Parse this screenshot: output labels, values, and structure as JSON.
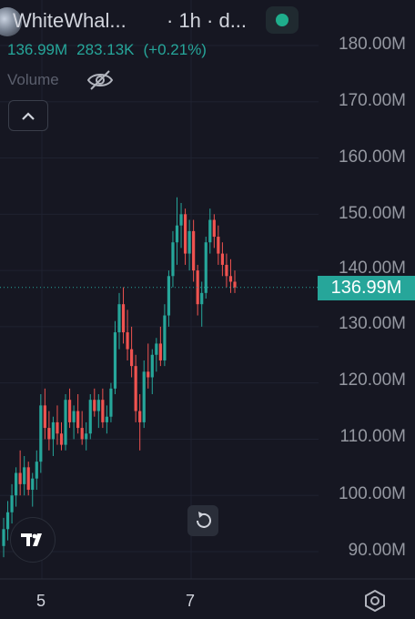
{
  "header": {
    "symbol": "WhiteWhal...",
    "timeframe": "· 1h · d...",
    "price": "136.99M",
    "change_abs": "283.13K",
    "change_pct": "(+0.21%)",
    "volume_label": "Volume"
  },
  "price_axis": {
    "labels": [
      "180.00M",
      "170.00M",
      "160.00M",
      "150.00M",
      "140.00M",
      "130.00M",
      "120.00M",
      "110.00M",
      "100.00M",
      "90.00M"
    ],
    "current_price": "136.99M"
  },
  "time_axis": {
    "labels": [
      "5",
      "7"
    ]
  },
  "colors": {
    "up": "#26a69a",
    "down": "#ef5350",
    "background": "#161722",
    "grid": "#1f2230"
  },
  "icons": {
    "status": "live-dot-icon",
    "volume_toggle": "eye-off-icon",
    "collapse": "chevron-up-icon",
    "reset": "reset-icon",
    "brand": "tradingview-logo-icon",
    "settings": "settings-icon"
  },
  "chart_data": {
    "type": "candlestick",
    "y_range_millions": [
      88,
      182
    ],
    "candles": [
      {
        "o": 91,
        "h": 96,
        "l": 89,
        "c": 94
      },
      {
        "o": 94,
        "h": 99,
        "l": 92,
        "c": 97
      },
      {
        "o": 97,
        "h": 102,
        "l": 95,
        "c": 100
      },
      {
        "o": 100,
        "h": 105,
        "l": 98,
        "c": 104
      },
      {
        "o": 104,
        "h": 108,
        "l": 100,
        "c": 102
      },
      {
        "o": 102,
        "h": 107,
        "l": 100,
        "c": 105
      },
      {
        "o": 105,
        "h": 106,
        "l": 100,
        "c": 101
      },
      {
        "o": 101,
        "h": 104,
        "l": 98,
        "c": 103
      },
      {
        "o": 103,
        "h": 108,
        "l": 101,
        "c": 106
      },
      {
        "o": 106,
        "h": 118,
        "l": 104,
        "c": 116
      },
      {
        "o": 116,
        "h": 119,
        "l": 110,
        "c": 112
      },
      {
        "o": 112,
        "h": 115,
        "l": 108,
        "c": 110
      },
      {
        "o": 110,
        "h": 114,
        "l": 107,
        "c": 113
      },
      {
        "o": 113,
        "h": 116,
        "l": 109,
        "c": 111
      },
      {
        "o": 111,
        "h": 113,
        "l": 108,
        "c": 109
      },
      {
        "o": 109,
        "h": 118,
        "l": 108,
        "c": 117
      },
      {
        "o": 117,
        "h": 119,
        "l": 112,
        "c": 113
      },
      {
        "o": 113,
        "h": 116,
        "l": 110,
        "c": 115
      },
      {
        "o": 115,
        "h": 118,
        "l": 111,
        "c": 112
      },
      {
        "o": 112,
        "h": 115,
        "l": 109,
        "c": 110
      },
      {
        "o": 110,
        "h": 113,
        "l": 108,
        "c": 111
      },
      {
        "o": 111,
        "h": 118,
        "l": 110,
        "c": 117
      },
      {
        "o": 117,
        "h": 119,
        "l": 114,
        "c": 115
      },
      {
        "o": 115,
        "h": 118,
        "l": 112,
        "c": 117
      },
      {
        "o": 117,
        "h": 119,
        "l": 112,
        "c": 113
      },
      {
        "o": 113,
        "h": 116,
        "l": 111,
        "c": 114
      },
      {
        "o": 114,
        "h": 120,
        "l": 113,
        "c": 119
      },
      {
        "o": 119,
        "h": 131,
        "l": 118,
        "c": 129
      },
      {
        "o": 129,
        "h": 136,
        "l": 126,
        "c": 134
      },
      {
        "o": 134,
        "h": 137,
        "l": 127,
        "c": 129
      },
      {
        "o": 129,
        "h": 133,
        "l": 124,
        "c": 126
      },
      {
        "o": 126,
        "h": 130,
        "l": 121,
        "c": 123
      },
      {
        "o": 123,
        "h": 125,
        "l": 113,
        "c": 115
      },
      {
        "o": 115,
        "h": 118,
        "l": 108,
        "c": 113
      },
      {
        "o": 113,
        "h": 124,
        "l": 112,
        "c": 122
      },
      {
        "o": 122,
        "h": 127,
        "l": 119,
        "c": 121
      },
      {
        "o": 121,
        "h": 126,
        "l": 118,
        "c": 125
      },
      {
        "o": 125,
        "h": 128,
        "l": 122,
        "c": 127
      },
      {
        "o": 127,
        "h": 130,
        "l": 123,
        "c": 124
      },
      {
        "o": 124,
        "h": 134,
        "l": 123,
        "c": 132
      },
      {
        "o": 132,
        "h": 140,
        "l": 130,
        "c": 139
      },
      {
        "o": 139,
        "h": 147,
        "l": 137,
        "c": 145
      },
      {
        "o": 145,
        "h": 153,
        "l": 141,
        "c": 148
      },
      {
        "o": 148,
        "h": 152,
        "l": 144,
        "c": 150
      },
      {
        "o": 150,
        "h": 151,
        "l": 141,
        "c": 143
      },
      {
        "o": 143,
        "h": 149,
        "l": 140,
        "c": 147
      },
      {
        "o": 147,
        "h": 149,
        "l": 138,
        "c": 140
      },
      {
        "o": 140,
        "h": 141,
        "l": 132,
        "c": 134
      },
      {
        "o": 134,
        "h": 138,
        "l": 130,
        "c": 136
      },
      {
        "o": 136,
        "h": 146,
        "l": 135,
        "c": 145
      },
      {
        "o": 145,
        "h": 151,
        "l": 143,
        "c": 149
      },
      {
        "o": 149,
        "h": 150,
        "l": 144,
        "c": 146
      },
      {
        "o": 146,
        "h": 148,
        "l": 141,
        "c": 143
      },
      {
        "o": 143,
        "h": 145,
        "l": 139,
        "c": 141
      },
      {
        "o": 141,
        "h": 143,
        "l": 137,
        "c": 139
      },
      {
        "o": 139,
        "h": 142,
        "l": 136,
        "c": 138
      },
      {
        "o": 138,
        "h": 140,
        "l": 136,
        "c": 136.99
      }
    ]
  }
}
